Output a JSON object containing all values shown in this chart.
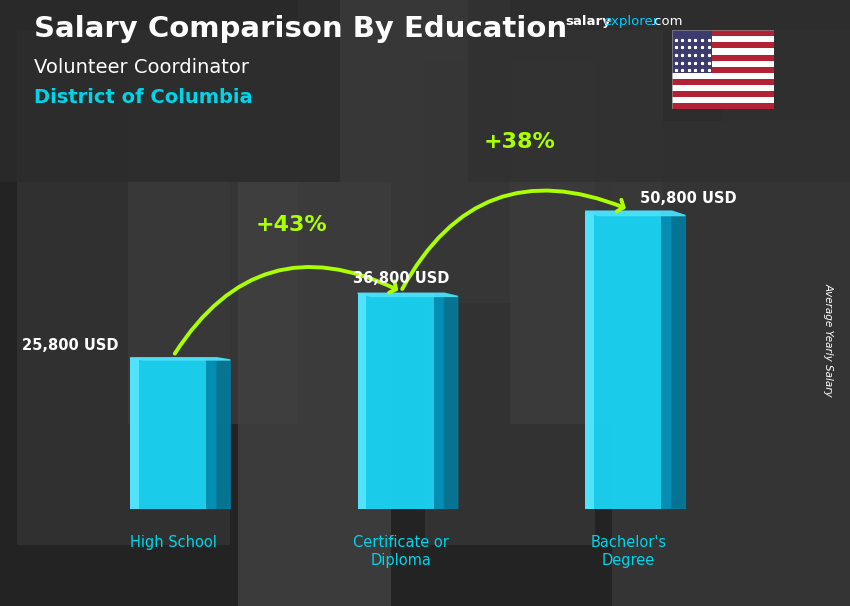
{
  "title_main": "Salary Comparison By Education",
  "subtitle": "Volunteer Coordinator",
  "location": "District of Columbia",
  "categories": [
    "High School",
    "Certificate or\nDiploma",
    "Bachelor's\nDegree"
  ],
  "values": [
    25800,
    36800,
    50800
  ],
  "value_labels": [
    "25,800 USD",
    "36,800 USD",
    "50,800 USD"
  ],
  "bar_color_main": "#1ad4f5",
  "bar_color_left": "#5ae8ff",
  "bar_color_right": "#007fa3",
  "bar_color_top": "#4de0f8",
  "pct_labels": [
    "+43%",
    "+38%"
  ],
  "pct_color": "#aaff00",
  "arrow_color": "#aaff00",
  "ylabel": "Average Yearly Salary",
  "title_color": "#ffffff",
  "subtitle_color": "#ffffff",
  "location_color": "#00d4e8",
  "cat_label_color": "#00d4e8",
  "salary_color": "#00cfff",
  "bar_positions": [
    0,
    1,
    2
  ],
  "bar_width": 0.38,
  "ylim_max": 62000,
  "bg_color": "#3a3a3a"
}
